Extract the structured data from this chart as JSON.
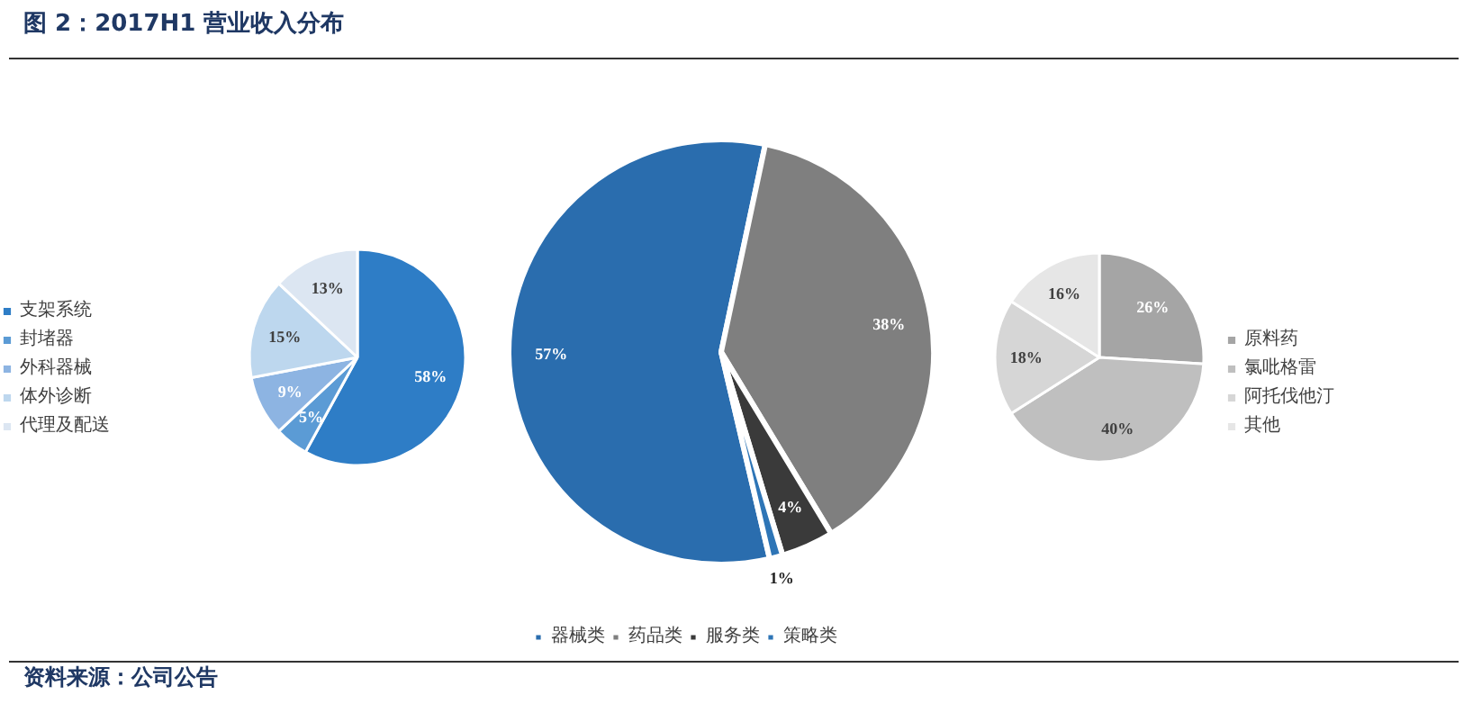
{
  "chart_data": [
    {
      "type": "pie",
      "title": "图 2：2017H1 营业收入分布",
      "categories": [
        "支架系统",
        "封堵器",
        "外科器械",
        "体外诊断",
        "代理及配送"
      ],
      "values": [
        58,
        5,
        9,
        15,
        13
      ],
      "value_labels": [
        "58%",
        "5%",
        "9%",
        "15%",
        "13%"
      ],
      "colors": [
        "#2e7dc6",
        "#5b9bd5",
        "#8db4e2",
        "#bdd7ee",
        "#dce6f2"
      ],
      "legend": "left"
    },
    {
      "type": "pie",
      "categories": [
        "器械类",
        "药品类",
        "服务类",
        "策略类"
      ],
      "values": [
        57,
        38,
        4,
        1
      ],
      "value_labels": [
        "57%",
        "38%",
        "4%",
        "1%"
      ],
      "colors": [
        "#2a6dae",
        "#7f7f7f",
        "#3a3a3a",
        "#2e75b6"
      ],
      "legend": "bottom"
    },
    {
      "type": "pie",
      "categories": [
        "原料药",
        "氯吡格雷",
        "阿托伐他汀",
        "其他"
      ],
      "values": [
        26,
        40,
        18,
        16
      ],
      "value_labels": [
        "26%",
        "40%",
        "18%",
        "16%"
      ],
      "colors": [
        "#a5a5a5",
        "#bfbfbf",
        "#d6d6d6",
        "#e6e6e6"
      ],
      "legend": "right",
      "annotations": [
        "资料来源：公司公告"
      ]
    }
  ]
}
